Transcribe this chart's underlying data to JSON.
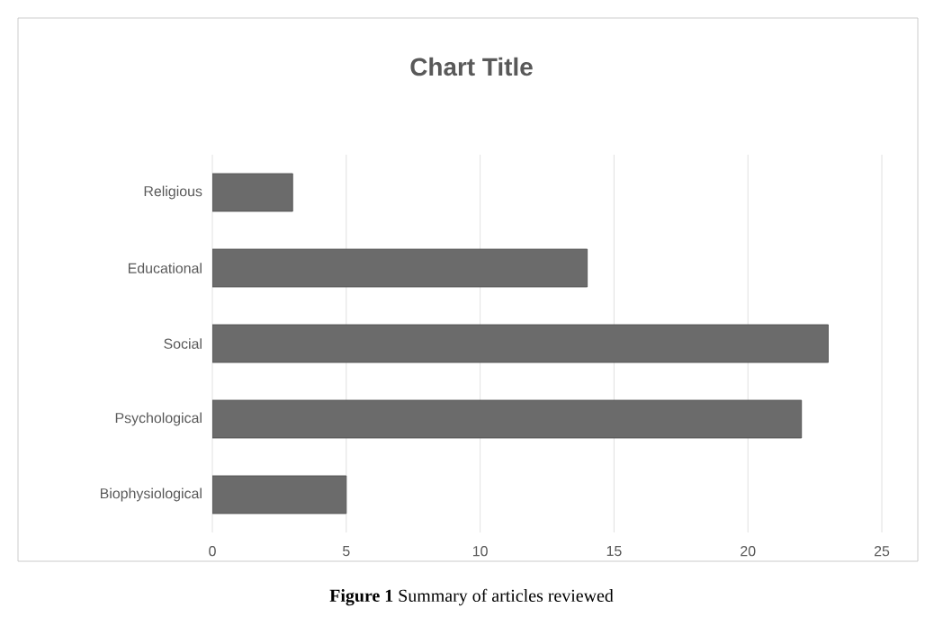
{
  "chart_data": {
    "type": "bar",
    "orientation": "horizontal",
    "title": "Chart Title",
    "categories": [
      "Religious",
      "Educational",
      "Social",
      "Psychological",
      "Biophysiological"
    ],
    "values": [
      3,
      14,
      23,
      22,
      5
    ],
    "color": "#6b6b6b",
    "xlim": [
      0,
      25
    ],
    "xticks": [
      0,
      5,
      10,
      15,
      20,
      25
    ],
    "grid": "x",
    "annotations": [
      "**Figure 1** Summary of articles reviewed"
    ]
  }
}
